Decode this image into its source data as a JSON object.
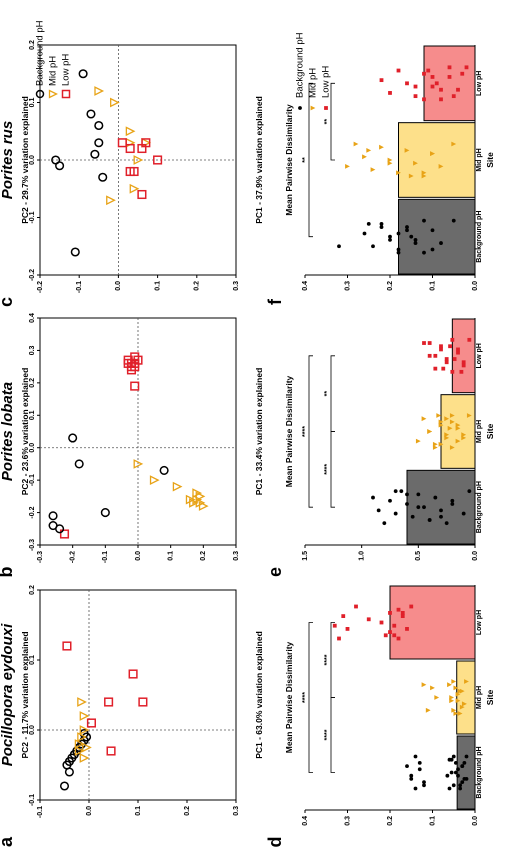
{
  "figure": {
    "title": ""
  },
  "legend_items": [
    "Background pH",
    "Mid pH",
    "Low pH"
  ],
  "colors": {
    "background": "#000000",
    "mid": "#e8a317",
    "low": "#e0202a",
    "bar_background": "#6b6b6b",
    "bar_mid": "#fde08a",
    "bar_low": "#f68c8c"
  },
  "chart_data": [
    {
      "panel": "a",
      "type": "scatter",
      "title": "Pocillopora eydouxi",
      "xlabel": "PC1 - 63.0% variation explained",
      "ylabel": "PC2 - 11.7% variation explained",
      "xlim": [
        -0.1,
        0.3
      ],
      "ylim": [
        -0.1,
        0.2
      ],
      "xticks": [
        -0.1,
        0.0,
        0.1,
        0.2,
        0.3
      ],
      "yticks": [
        -0.1,
        0.0,
        0.1,
        0.2
      ],
      "grid": false,
      "series": [
        {
          "name": "Background pH",
          "marker": "circle",
          "points": [
            [
              -0.08,
              -0.05
            ],
            [
              -0.06,
              -0.04
            ],
            [
              -0.05,
              -0.045
            ],
            [
              -0.045,
              -0.04
            ],
            [
              -0.04,
              -0.035
            ],
            [
              -0.035,
              -0.03
            ],
            [
              -0.03,
              -0.025
            ],
            [
              -0.025,
              -0.02
            ],
            [
              -0.02,
              -0.015
            ],
            [
              -0.015,
              -0.01
            ],
            [
              -0.01,
              -0.005
            ],
            [
              -0.005,
              -0.01
            ]
          ]
        },
        {
          "name": "Mid pH",
          "marker": "triangle",
          "points": [
            [
              -0.04,
              -0.01
            ],
            [
              -0.03,
              -0.02
            ],
            [
              -0.02,
              -0.02
            ],
            [
              -0.01,
              -0.015
            ],
            [
              0.0,
              -0.01
            ],
            [
              0.02,
              -0.01
            ],
            [
              0.04,
              -0.015
            ],
            [
              -0.025,
              -0.005
            ]
          ]
        },
        {
          "name": "Low pH",
          "marker": "square",
          "points": [
            [
              0.28,
              -0.05
            ],
            [
              0.12,
              -0.045
            ],
            [
              0.08,
              0.09
            ],
            [
              0.04,
              0.04
            ],
            [
              0.04,
              0.11
            ],
            [
              0.01,
              0.005
            ],
            [
              -0.03,
              0.045
            ]
          ]
        }
      ]
    },
    {
      "panel": "b",
      "type": "scatter",
      "title": "Porites lobata",
      "xlabel": "PC1 - 33.4% variation explained",
      "ylabel": "PC2 - 23.6% variation explained",
      "xlim": [
        -0.3,
        0.3
      ],
      "ylim": [
        -0.3,
        0.4
      ],
      "xticks": [
        -0.3,
        -0.2,
        -0.1,
        0.0,
        0.1,
        0.2,
        0.3
      ],
      "yticks": [
        -0.3,
        -0.2,
        -0.1,
        0.0,
        0.1,
        0.2,
        0.3,
        0.4
      ],
      "grid": false,
      "series": [
        {
          "name": "Background pH",
          "marker": "circle",
          "points": [
            [
              -0.25,
              -0.24
            ],
            [
              -0.24,
              -0.26
            ],
            [
              -0.21,
              -0.26
            ],
            [
              -0.2,
              -0.1
            ],
            [
              -0.07,
              0.08
            ],
            [
              -0.05,
              -0.18
            ],
            [
              0.03,
              -0.2
            ]
          ]
        },
        {
          "name": "Mid pH",
          "marker": "triangle",
          "points": [
            [
              -0.18,
              0.2
            ],
            [
              -0.17,
              0.19
            ],
            [
              -0.16,
              0.18
            ],
            [
              -0.15,
              0.19
            ],
            [
              -0.17,
              0.17
            ],
            [
              -0.16,
              0.16
            ],
            [
              -0.14,
              0.18
            ],
            [
              -0.12,
              0.12
            ],
            [
              -0.1,
              0.05
            ],
            [
              -0.05,
              0.0
            ]
          ]
        },
        {
          "name": "Low pH",
          "marker": "square",
          "points": [
            [
              0.27,
              0.0
            ],
            [
              0.26,
              -0.01
            ],
            [
              0.26,
              -0.03
            ],
            [
              0.25,
              -0.02
            ],
            [
              0.24,
              -0.02
            ],
            [
              0.27,
              -0.03
            ],
            [
              0.28,
              -0.01
            ],
            [
              0.25,
              -0.01
            ],
            [
              0.19,
              -0.01
            ],
            [
              0.26,
              -0.02
            ]
          ]
        }
      ]
    },
    {
      "panel": "c",
      "type": "scatter",
      "title": "Porites rus",
      "xlabel": "PC1 - 37.9% variation explained",
      "ylabel": "PC2 - 29.7% variation explained",
      "xlim": [
        -0.2,
        0.3
      ],
      "ylim": [
        -0.2,
        0.2
      ],
      "xticks": [
        -0.2,
        -0.1,
        0.0,
        0.1,
        0.2,
        0.3
      ],
      "yticks": [
        -0.2,
        -0.1,
        0.0,
        0.1,
        0.2
      ],
      "grid": false,
      "series": [
        {
          "name": "Background pH",
          "marker": "circle",
          "points": [
            [
              -0.16,
              -0.11
            ],
            [
              -0.01,
              -0.15
            ],
            [
              0.03,
              -0.05
            ],
            [
              0.08,
              -0.07
            ],
            [
              0.15,
              -0.09
            ],
            [
              0.06,
              -0.05
            ],
            [
              0.01,
              -0.06
            ],
            [
              -0.03,
              -0.04
            ],
            [
              0.0,
              -0.16
            ]
          ]
        },
        {
          "name": "Mid pH",
          "marker": "triangle",
          "points": [
            [
              0.12,
              -0.05
            ],
            [
              0.03,
              0.03
            ],
            [
              -0.05,
              0.04
            ],
            [
              -0.07,
              -0.02
            ],
            [
              0.0,
              0.05
            ],
            [
              0.03,
              0.07
            ],
            [
              0.1,
              -0.01
            ],
            [
              0.05,
              0.03
            ]
          ]
        },
        {
          "name": "Low pH",
          "marker": "square",
          "points": [
            [
              0.0,
              0.1
            ],
            [
              0.03,
              0.07
            ],
            [
              -0.02,
              0.04
            ],
            [
              -0.02,
              0.03
            ],
            [
              -0.06,
              0.06
            ],
            [
              0.02,
              0.03
            ],
            [
              0.03,
              0.01
            ],
            [
              0.02,
              0.06
            ]
          ]
        }
      ]
    },
    {
      "panel": "d",
      "type": "bar",
      "title": "",
      "xlabel": "Site",
      "ylabel": "Mean Pairwise Dissimilarity",
      "categories": [
        "Background pH",
        "Mid pH",
        "Low pH"
      ],
      "values": [
        0.042,
        0.043,
        0.2
      ],
      "ylim": [
        0.0,
        0.4
      ],
      "yticks": [
        0.0,
        0.1,
        0.2,
        0.3,
        0.4
      ],
      "points": [
        [
          0.02,
          0.025,
          0.03,
          0.035,
          0.04,
          0.045,
          0.05,
          0.055,
          0.06,
          0.03,
          0.04,
          0.05,
          0.02,
          0.03,
          0.06,
          0.065,
          0.025,
          0.035,
          0.045,
          0.055,
          0.12,
          0.13,
          0.14,
          0.15,
          0.16,
          0.14,
          0.15,
          0.13,
          0.12
        ],
        [
          0.02,
          0.025,
          0.03,
          0.035,
          0.04,
          0.045,
          0.05,
          0.055,
          0.06,
          0.03,
          0.04,
          0.05,
          0.025,
          0.035,
          0.045,
          0.055,
          0.1,
          0.11,
          0.09,
          0.12
        ],
        [
          0.15,
          0.16,
          0.17,
          0.18,
          0.19,
          0.2,
          0.21,
          0.22,
          0.18,
          0.2,
          0.25,
          0.28,
          0.3,
          0.31,
          0.32,
          0.33,
          0.17,
          0.19
        ]
      ],
      "significance": [
        {
          "from": 0,
          "to": 1,
          "label": "****"
        },
        {
          "from": 1,
          "to": 2,
          "label": "****"
        },
        {
          "from": 0,
          "to": 2,
          "label": "****"
        }
      ]
    },
    {
      "panel": "e",
      "type": "bar",
      "title": "",
      "xlabel": "Site",
      "ylabel": "Mean Pairwise Dissimilarity",
      "categories": [
        "Background pH",
        "Mid pH",
        "Low pH"
      ],
      "values": [
        0.6,
        0.3,
        0.2
      ],
      "ylim": [
        0.0,
        1.5
      ],
      "yticks": [
        0.0,
        0.5,
        1.0,
        1.5
      ],
      "points": [
        [
          0.05,
          0.1,
          0.2,
          0.25,
          0.3,
          0.35,
          0.4,
          0.45,
          0.5,
          0.55,
          0.6,
          0.65,
          0.7,
          0.75,
          0.8,
          0.85,
          0.9,
          0.4,
          0.5,
          0.6,
          0.3,
          0.2,
          0.7
        ],
        [
          0.05,
          0.1,
          0.15,
          0.2,
          0.25,
          0.3,
          0.35,
          0.4,
          0.45,
          0.5,
          0.15,
          0.2,
          0.25,
          0.3,
          0.35,
          0.1,
          0.2,
          0.3,
          0.4,
          0.25,
          0.15,
          0.22,
          0.32
        ],
        [
          0.05,
          0.1,
          0.15,
          0.2,
          0.25,
          0.3,
          0.35,
          0.4,
          0.45,
          0.1,
          0.15,
          0.2,
          0.25,
          0.3,
          0.12,
          0.18,
          0.22,
          0.28,
          0.35,
          0.4
        ]
      ],
      "significance": [
        {
          "from": 0,
          "to": 1,
          "label": "****"
        },
        {
          "from": 1,
          "to": 2,
          "label": "**"
        },
        {
          "from": 0,
          "to": 2,
          "label": "****"
        }
      ]
    },
    {
      "panel": "f",
      "type": "bar",
      "title": "",
      "xlabel": "Site",
      "ylabel": "Mean Pairwise Dissimilarity",
      "categories": [
        "Background pH",
        "Mid pH",
        "Low pH"
      ],
      "values": [
        0.18,
        0.18,
        0.12
      ],
      "ylim": [
        0.0,
        0.4
      ],
      "yticks": [
        0.0,
        0.1,
        0.2,
        0.3,
        0.4
      ],
      "points": [
        [
          0.05,
          0.08,
          0.1,
          0.12,
          0.14,
          0.16,
          0.18,
          0.2,
          0.22,
          0.24,
          0.26,
          0.12,
          0.14,
          0.16,
          0.18,
          0.2,
          0.22,
          0.1,
          0.15,
          0.25,
          0.32,
          0.18
        ],
        [
          0.05,
          0.08,
          0.1,
          0.12,
          0.14,
          0.16,
          0.18,
          0.2,
          0.22,
          0.24,
          0.26,
          0.28,
          0.3,
          0.1,
          0.15,
          0.2,
          0.25,
          0.12
        ],
        [
          0.02,
          0.04,
          0.06,
          0.08,
          0.1,
          0.12,
          0.14,
          0.16,
          0.18,
          0.2,
          0.22,
          0.06,
          0.08,
          0.1,
          0.12,
          0.14,
          0.03,
          0.05,
          0.09,
          0.11
        ]
      ],
      "significance": [
        {
          "from": 1,
          "to": 2,
          "label": "**"
        },
        {
          "from": 0,
          "to": 2,
          "label": "**"
        }
      ]
    }
  ]
}
